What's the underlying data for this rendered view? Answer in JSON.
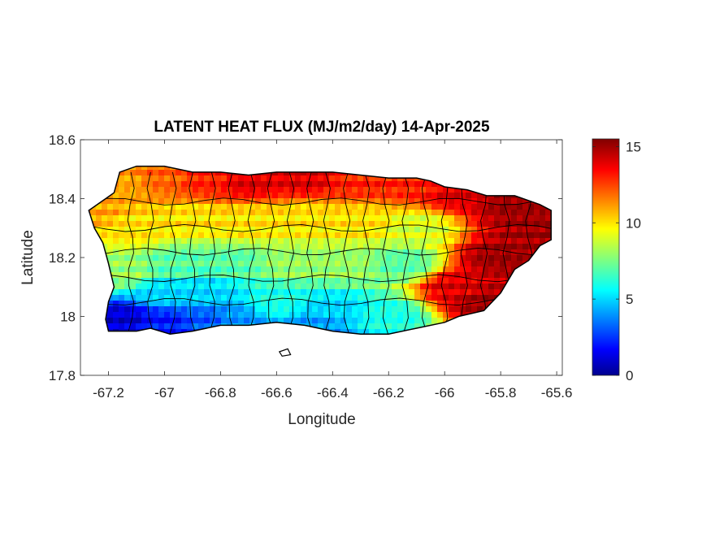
{
  "chart_data": {
    "type": "heatmap",
    "title": "LATENT HEAT FLUX (MJ/m2/day) 14-Apr-2025",
    "xlabel": "Longitude",
    "ylabel": "Latitude",
    "xlim": [
      -67.3,
      -65.58
    ],
    "ylim": [
      17.8,
      18.6
    ],
    "xticks": [
      -67.2,
      -67,
      -66.8,
      -66.6,
      -66.4,
      -66.2,
      -66,
      -65.8,
      -65.6
    ],
    "xtick_labels": [
      "-67.2",
      "-67",
      "-66.8",
      "-66.6",
      "-66.4",
      "-66.2",
      "-66",
      "-65.8",
      "-65.6"
    ],
    "yticks": [
      17.8,
      18,
      18.2,
      18.4,
      18.6
    ],
    "ytick_labels": [
      "17.8",
      "18",
      "18.2",
      "18.4",
      "18.6"
    ],
    "grid": false,
    "colormap": "jet",
    "colorbar": {
      "range": [
        0,
        15.5
      ],
      "ticks": [
        0,
        5,
        10,
        15
      ],
      "tick_labels": [
        "0",
        "5",
        "10",
        "15"
      ],
      "placement": "right"
    },
    "region": "Puerto Rico",
    "field_values": [
      {
        "lon": -67.25,
        "lat": 18.36,
        "value": 11
      },
      {
        "lon": -67.15,
        "lat": 18.45,
        "value": 11
      },
      {
        "lon": -67.0,
        "lat": 18.47,
        "value": 12
      },
      {
        "lon": -66.85,
        "lat": 18.46,
        "value": 13
      },
      {
        "lon": -66.7,
        "lat": 18.46,
        "value": 14
      },
      {
        "lon": -66.5,
        "lat": 18.47,
        "value": 14
      },
      {
        "lon": -66.3,
        "lat": 18.46,
        "value": 13
      },
      {
        "lon": -66.1,
        "lat": 18.45,
        "value": 13
      },
      {
        "lon": -65.95,
        "lat": 18.42,
        "value": 14
      },
      {
        "lon": -65.75,
        "lat": 18.38,
        "value": 15
      },
      {
        "lon": -65.65,
        "lat": 18.3,
        "value": 15
      },
      {
        "lon": -65.8,
        "lat": 18.2,
        "value": 15
      },
      {
        "lon": -65.85,
        "lat": 18.05,
        "value": 15
      },
      {
        "lon": -65.95,
        "lat": 18.1,
        "value": 14
      },
      {
        "lon": -67.1,
        "lat": 18.3,
        "value": 10
      },
      {
        "lon": -66.9,
        "lat": 18.33,
        "value": 10
      },
      {
        "lon": -66.7,
        "lat": 18.32,
        "value": 10
      },
      {
        "lon": -66.5,
        "lat": 18.33,
        "value": 10
      },
      {
        "lon": -66.3,
        "lat": 18.32,
        "value": 10
      },
      {
        "lon": -66.1,
        "lat": 18.3,
        "value": 9
      },
      {
        "lon": -67.15,
        "lat": 18.15,
        "value": 8
      },
      {
        "lon": -66.95,
        "lat": 18.18,
        "value": 7
      },
      {
        "lon": -66.75,
        "lat": 18.18,
        "value": 7
      },
      {
        "lon": -66.55,
        "lat": 18.18,
        "value": 8
      },
      {
        "lon": -66.35,
        "lat": 18.18,
        "value": 8
      },
      {
        "lon": -66.15,
        "lat": 18.18,
        "value": 7
      },
      {
        "lon": -67.0,
        "lat": 18.08,
        "value": 5
      },
      {
        "lon": -66.85,
        "lat": 18.08,
        "value": 5
      },
      {
        "lon": -66.6,
        "lat": 18.05,
        "value": 6
      },
      {
        "lon": -66.4,
        "lat": 18.02,
        "value": 5
      },
      {
        "lon": -66.2,
        "lat": 18.0,
        "value": 6
      },
      {
        "lon": -67.15,
        "lat": 17.99,
        "value": 1
      },
      {
        "lon": -67.0,
        "lat": 17.98,
        "value": 2
      },
      {
        "lon": -66.85,
        "lat": 17.99,
        "value": 3
      },
      {
        "lon": -66.75,
        "lat": 17.99,
        "value": 4
      },
      {
        "lon": -66.45,
        "lat": 17.97,
        "value": 4
      }
    ]
  }
}
